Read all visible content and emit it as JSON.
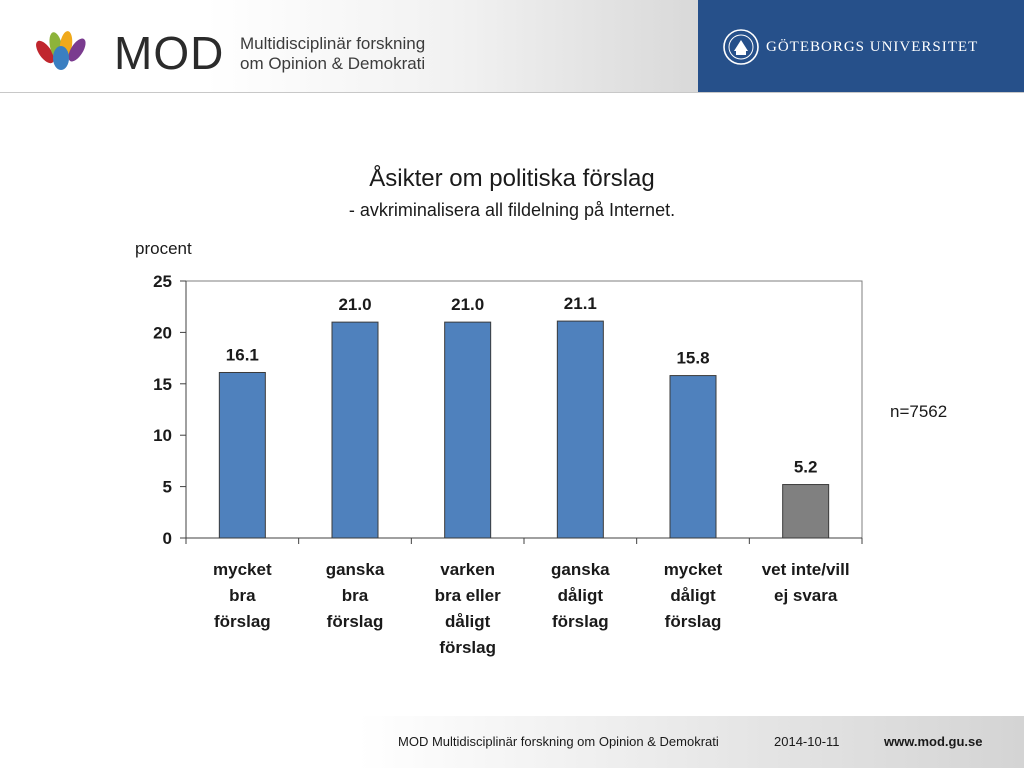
{
  "header": {
    "brand_name": "MOD",
    "brand_sub_line1": "Multidisciplinär forskning",
    "brand_sub_line2": "om Opinion & Demokrati",
    "university": "GÖTEBORGS UNIVERSITET"
  },
  "chart_data": {
    "type": "bar",
    "title": "Åsikter om politiska förslag",
    "subtitle": "- avkriminalisera all fildelning på Internet.",
    "ylabel": "procent",
    "xlabel": "",
    "ylim": [
      0,
      25
    ],
    "yticks": [
      0,
      5,
      10,
      15,
      20,
      25
    ],
    "grid": false,
    "categories": [
      [
        "mycket",
        "bra",
        "förslag"
      ],
      [
        "ganska",
        "bra",
        "förslag"
      ],
      [
        "varken",
        "bra eller",
        "dåligt",
        "förslag"
      ],
      [
        "ganska",
        "dåligt",
        "förslag"
      ],
      [
        "mycket",
        "dåligt",
        "förslag"
      ],
      [
        "vet inte/vill",
        "ej svara"
      ]
    ],
    "values": [
      16.1,
      21.0,
      21.0,
      21.1,
      15.8,
      5.2
    ],
    "value_labels": [
      "16.1",
      "21.0",
      "21.0",
      "21.1",
      "15.8",
      "5.2"
    ],
    "colors": [
      "#4f81bd",
      "#4f81bd",
      "#4f81bd",
      "#4f81bd",
      "#4f81bd",
      "#808080"
    ],
    "annotation": "n=7562"
  },
  "footer": {
    "org": "MOD Multidisciplinär forskning om Opinion & Demokrati",
    "date": "2014-10-11",
    "url": "www.mod.gu.se"
  }
}
